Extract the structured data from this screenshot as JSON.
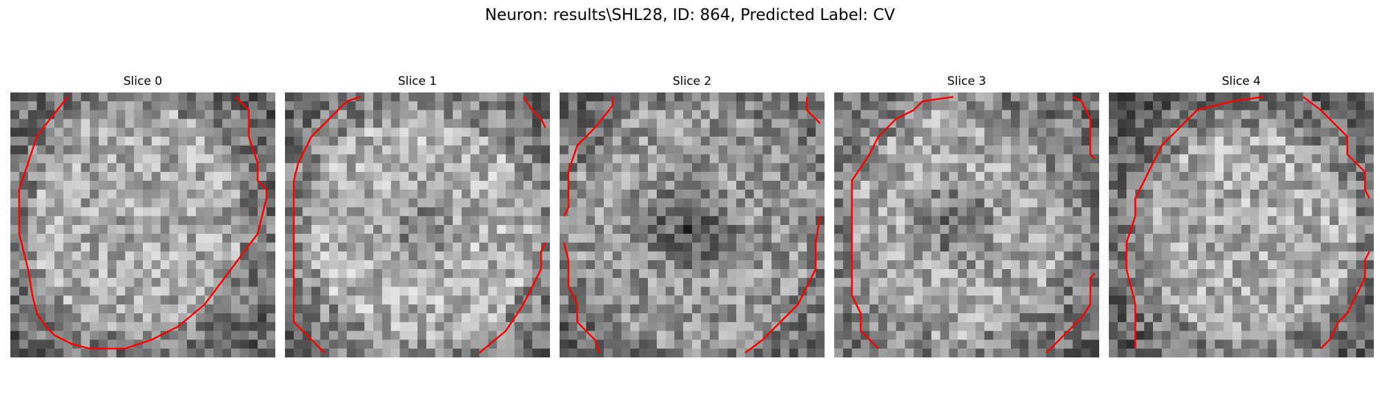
{
  "figure": {
    "title": "Neuron: results\\SHL28, ID: 864, Predicted Label: CV"
  },
  "slices": [
    {
      "label": "Slice 0",
      "description": "grayscale neuron crop with red outline"
    },
    {
      "label": "Slice 1",
      "description": "grayscale neuron crop with red outline"
    },
    {
      "label": "Slice 2",
      "description": "grayscale neuron crop with red outline"
    },
    {
      "label": "Slice 3",
      "description": "grayscale neuron crop with red outline"
    },
    {
      "label": "Slice 4",
      "description": "grayscale neuron crop with red outline"
    }
  ],
  "colors": {
    "contour": "#ff0000",
    "background": "#ffffff"
  }
}
